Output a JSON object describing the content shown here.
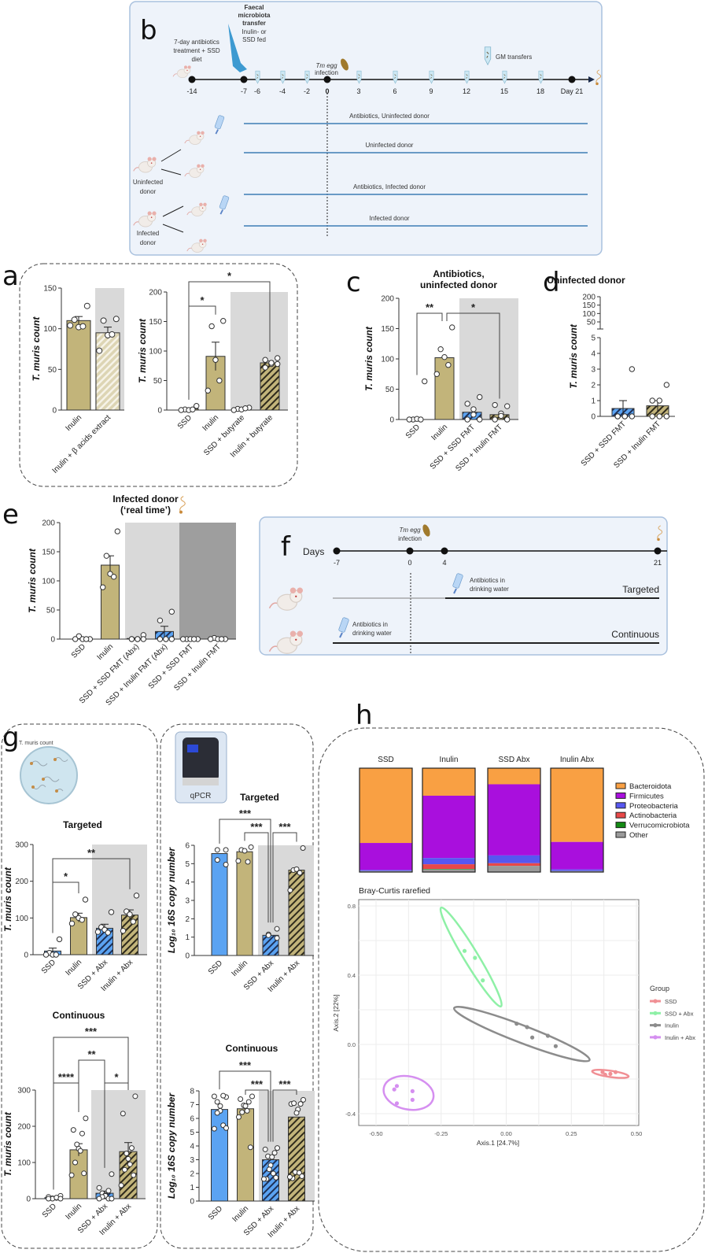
{
  "panel_labels": {
    "a": "a",
    "b": "b",
    "c": "c",
    "d": "d",
    "e": "e",
    "f": "f",
    "g": "g",
    "h": "h"
  },
  "diagram_b": {
    "pretreat": [
      "7-day antibiotics",
      "treatment + SSD",
      "diet"
    ],
    "fmt_title": [
      "Faecal",
      "microbiota",
      "transfer"
    ],
    "fmt_sub": [
      "Inulin- or",
      "SSD fed"
    ],
    "infection": [
      "Tm egg",
      "infection"
    ],
    "gm_transfers": "GM transfers",
    "timeline_ticks": [
      "-14",
      "-7",
      "-6",
      "-4",
      "-2",
      "0",
      "3",
      "6",
      "9",
      "12",
      "15",
      "18",
      "Day 21"
    ],
    "groups": [
      "Antibiotics, Uninfected donor",
      "Uninfected donor",
      "Antibiotics, Infected donor",
      "Infected donor"
    ],
    "donors": [
      [
        "Uninfected",
        "donor"
      ],
      [
        "Infected",
        "donor"
      ]
    ]
  },
  "diagram_f": {
    "days_label": "Days",
    "infection": [
      "Tm egg",
      "infection"
    ],
    "timeline_ticks": [
      "-7",
      "0",
      "4",
      "21"
    ],
    "antibiotics_note": [
      "Antibiotics in",
      "drinking water"
    ],
    "regimens": [
      "Targeted",
      "Continuous"
    ]
  },
  "panel_g": {
    "dish_label": "T. muris count",
    "qpcr_label": "qPCR"
  },
  "colors": {
    "khaki": "#c2b47a",
    "blue": "#5ba3f2",
    "shade_light": "#d9d9d9",
    "shade_dark": "#9e9e9e",
    "bacteroidota": "#f9a043",
    "firmicutes": "#a90fdd",
    "proteobacteria": "#5757f0",
    "actinobacteria": "#e84848",
    "verrucomicrobiota": "#138a13",
    "other": "#9a9a9a",
    "ssd": "#f08f94",
    "ssd_abx": "#8ef0a6",
    "inulin": "#8c8c8c",
    "inulin_abx": "#d58ff0"
  },
  "chart_data": [
    {
      "type": "bar",
      "title": "",
      "ylabel": "T. muris count",
      "ylim": [
        0,
        150
      ],
      "yticks": [
        0,
        50,
        100,
        150
      ],
      "categories": [
        "Inulin",
        "Inulin + β acids extract"
      ],
      "styles": [
        "solid-khaki",
        "hatched-light-khaki"
      ],
      "means": [
        110,
        95
      ],
      "sem": [
        5,
        7
      ],
      "points": [
        [
          128,
          111,
          102,
          103,
          104
        ],
        [
          112,
          110,
          92,
          93,
          73
        ]
      ],
      "brackets": []
    },
    {
      "type": "bar",
      "title": "",
      "ylabel": "T. muris count",
      "ylim": [
        0,
        200
      ],
      "yticks": [
        0,
        50,
        100,
        150,
        200
      ],
      "categories": [
        "SSD",
        "Inulin",
        "SSD + butyrate",
        "Inulin + butyrate"
      ],
      "styles": [
        "solid-khaki",
        "solid-khaki",
        "hatched-khaki",
        "hatched-khaki"
      ],
      "means": [
        2,
        91,
        2,
        80
      ],
      "sem": [
        1,
        24,
        1,
        3
      ],
      "points": [
        [
          7,
          1,
          0,
          1,
          0
        ],
        [
          151,
          142,
          85,
          50,
          33
        ],
        [
          4,
          2,
          1,
          3,
          0
        ],
        [
          88,
          85,
          78,
          80,
          72,
          78
        ]
      ],
      "brackets": [
        {
          "from": 0,
          "to": 1,
          "label": "*"
        },
        {
          "from": 0,
          "to": 3,
          "label": "*"
        }
      ]
    },
    {
      "type": "bar",
      "title": "Antibiotics, uninfected donor",
      "title_lines": [
        "Antibiotics,",
        "uninfected donor"
      ],
      "ylabel": "T. muris count",
      "ylim": [
        0,
        200
      ],
      "yticks": [
        0,
        50,
        100,
        150,
        200
      ],
      "categories": [
        "SSD",
        "Inulin",
        "SSD + SSD FMT",
        "SSD + Inulin FMT"
      ],
      "styles": [
        "solid-khaki",
        "solid-khaki",
        "hatched-blue",
        "hatched-khaki"
      ],
      "means": [
        0,
        102,
        12,
        8
      ],
      "sem": [
        0,
        0,
        0,
        0
      ],
      "points": [
        [
          63,
          0,
          1,
          0,
          0
        ],
        [
          152,
          116,
          103,
          90,
          75
        ],
        [
          37,
          26,
          17,
          8,
          0,
          0
        ],
        [
          22,
          24,
          10,
          6,
          0,
          0
        ]
      ],
      "brackets": [
        {
          "from": 0,
          "to": 1,
          "label": "**"
        },
        {
          "from": 1,
          "to": 3,
          "label": "*"
        }
      ]
    },
    {
      "type": "bar",
      "title": "Uninfected donor",
      "ylabel": "T. muris count",
      "ylim": [
        0,
        200
      ],
      "yticks": [
        0,
        1,
        2,
        3,
        4,
        5
      ],
      "yticks_upper": [
        50,
        100,
        150,
        200
      ],
      "axis_break": [
        5,
        50
      ],
      "categories": [
        "SSD + SSD FMT",
        "SSD + Inulin FMT"
      ],
      "styles": [
        "hatched-blue",
        "hatched-khaki"
      ],
      "means": [
        0.5,
        0.67
      ],
      "sem": [
        0.5,
        0.33
      ],
      "points": [
        [
          3,
          0,
          0,
          0,
          0,
          0
        ],
        [
          2,
          1,
          1,
          0,
          0,
          0
        ]
      ],
      "brackets": []
    },
    {
      "type": "bar",
      "title": "Infected donor (‘real time’)",
      "title_lines": [
        "Infected donor",
        "(‘real time’)"
      ],
      "ylabel": "T. muris count",
      "ylim": [
        0,
        200
      ],
      "yticks": [
        0,
        50,
        100,
        150,
        200
      ],
      "categories": [
        "SSD",
        "Inulin",
        "SSD + SSD FMT (Abx)",
        "SSD + Inulin FMT (Abx)",
        "SSD + SSD FMT",
        "SSD + Inulin FMT"
      ],
      "styles": [
        "solid-khaki",
        "solid-khaki",
        "hatched-blue",
        "hatched-blue",
        "hatched-blue",
        "hatched-khaki"
      ],
      "means": [
        1,
        127,
        1,
        13,
        0,
        0
      ],
      "sem": [
        1,
        16,
        1,
        9,
        0,
        0
      ],
      "points": [
        [
          0,
          5,
          0,
          0,
          0
        ],
        [
          185,
          143,
          112,
          107,
          89
        ],
        [
          7,
          0,
          0,
          0,
          0,
          0
        ],
        [
          47,
          32,
          0,
          0,
          0,
          0
        ],
        [
          0,
          0,
          0,
          0,
          0
        ],
        [
          0,
          2,
          0,
          0,
          0
        ]
      ],
      "brackets": []
    },
    {
      "type": "bar",
      "title": "Targeted",
      "ylabel": "T. muris count",
      "ylim": [
        0,
        300
      ],
      "yticks": [
        0,
        100,
        200,
        300
      ],
      "categories": [
        "SSD",
        "Inulin",
        "SSD + Abx",
        "Inulin + Abx"
      ],
      "styles": [
        "solid-blue",
        "solid-khaki",
        "hatched-blue",
        "hatched-khaki"
      ],
      "means": [
        10,
        101,
        72,
        108
      ],
      "sem": [
        8,
        12,
        11,
        14
      ],
      "points": [
        [
          42,
          5,
          0,
          0,
          0
        ],
        [
          150,
          110,
          100,
          95,
          85
        ],
        [
          116,
          75,
          68,
          60,
          62
        ],
        [
          161,
          118,
          110,
          90,
          65
        ]
      ],
      "brackets": [
        {
          "from": 0,
          "to": 1,
          "label": "*"
        },
        {
          "from": 0,
          "to": 3,
          "label": "**"
        }
      ]
    },
    {
      "type": "bar",
      "title": "Targeted",
      "ylabel": "Log₁₀ 16S copy number",
      "ylim": [
        0,
        6
      ],
      "yticks": [
        0,
        1,
        2,
        3,
        4,
        5,
        6
      ],
      "categories": [
        "SSD",
        "Inulin",
        "SSD + Abx",
        "Inulin + Abx"
      ],
      "styles": [
        "solid-blue",
        "solid-khaki",
        "hatched-blue",
        "hatched-khaki"
      ],
      "means": [
        5.55,
        5.65,
        1.1,
        4.65
      ],
      "sem": [
        0,
        0,
        0,
        0
      ],
      "points": [
        [
          5.75,
          5.75,
          5.2,
          4.95
        ],
        [
          5.9,
          5.75,
          5.7,
          5.1,
          5.15
        ],
        [
          1.45,
          1.15,
          1.1,
          0.95
        ],
        [
          5.85,
          4.65,
          4.7,
          4.5,
          3.55
        ]
      ],
      "brackets": [
        {
          "from": 0,
          "to": 2,
          "label": "***"
        },
        {
          "from": 1,
          "to": 2,
          "label": "***"
        },
        {
          "from": 2,
          "to": 3,
          "label": "***"
        }
      ]
    },
    {
      "type": "bar",
      "title": "Continuous",
      "ylabel": "T. muris count",
      "ylim": [
        0,
        300
      ],
      "yticks": [
        0,
        100,
        200,
        300
      ],
      "categories": [
        "SSD",
        "Inulin",
        "SSD + Abx",
        "Inulin + Abx"
      ],
      "styles": [
        "solid-blue",
        "solid-khaki",
        "hatched-blue",
        "hatched-khaki"
      ],
      "means": [
        3,
        135,
        15,
        130
      ],
      "sem": [
        1,
        17,
        6,
        25
      ],
      "points": [
        [
          8,
          5,
          2,
          1,
          0,
          3,
          0,
          0
        ],
        [
          222,
          190,
          180,
          150,
          138,
          132,
          100,
          70,
          65
        ],
        [
          68,
          30,
          22,
          15,
          10,
          8,
          5,
          0,
          0,
          0
        ],
        [
          283,
          235,
          140,
          125,
          110,
          95,
          80,
          65,
          37
        ]
      ],
      "brackets": [
        {
          "from": 0,
          "to": 1,
          "label": "****"
        },
        {
          "from": 1,
          "to": 2,
          "label": "**"
        },
        {
          "from": 0,
          "to": 3,
          "label": "***"
        },
        {
          "from": 2,
          "to": 3,
          "label": "*"
        }
      ]
    },
    {
      "type": "bar",
      "title": "Continuous",
      "ylabel": "Log₁₀ 16S copy number",
      "ylim": [
        0,
        8
      ],
      "yticks": [
        0,
        1,
        2,
        3,
        4,
        5,
        6,
        7,
        8
      ],
      "categories": [
        "SSD",
        "Inulin",
        "SSD + Abx",
        "Inulin + Abx"
      ],
      "styles": [
        "solid-blue",
        "solid-khaki",
        "hatched-blue",
        "hatched-khaki"
      ],
      "means": [
        6.65,
        6.7,
        3.0,
        6.1
      ],
      "sem": [
        0,
        0,
        0,
        0
      ],
      "points": [
        [
          7.55,
          7.6,
          7.65,
          7.2,
          6.9,
          6.55,
          6.4,
          5.5,
          5.25,
          5.3
        ],
        [
          7.6,
          7.4,
          7.2,
          6.95,
          6.9,
          6.55,
          6.45,
          3.9,
          6.1
        ],
        [
          3.85,
          3.75,
          3.5,
          3.25,
          3.2,
          2.6,
          2.3,
          2.0,
          1.6,
          1.7,
          1.6
        ],
        [
          7.35,
          7.05,
          7.05,
          7.1,
          6.65,
          6.4,
          2.1,
          2.05,
          1.65,
          1.8,
          1.75
        ]
      ],
      "brackets": [
        {
          "from": 0,
          "to": 2,
          "label": "***"
        },
        {
          "from": 1,
          "to": 2,
          "label": "***"
        },
        {
          "from": 2,
          "to": 3,
          "label": "***"
        }
      ]
    },
    {
      "type": "bar",
      "subtype": "stacked-100",
      "categories": [
        "SSD",
        "Inulin",
        "SSD Abx",
        "Inulin Abx"
      ],
      "series": [
        {
          "name": "Bacteroidota",
          "values": [
            0.72,
            0.265,
            0.155,
            0.71
          ]
        },
        {
          "name": "Firmicutes",
          "values": [
            0.26,
            0.6,
            0.685,
            0.265
          ]
        },
        {
          "name": "Proteobacteria",
          "values": [
            0.01,
            0.06,
            0.075,
            0.015
          ]
        },
        {
          "name": "Actinobacteria",
          "values": [
            0.0,
            0.045,
            0.025,
            0.0
          ]
        },
        {
          "name": "Verrucomicrobiota",
          "values": [
            0.0,
            0.005,
            0.0,
            0.0
          ]
        },
        {
          "name": "Other",
          "values": [
            0.01,
            0.025,
            0.06,
            0.01
          ]
        }
      ],
      "legend": "right"
    },
    {
      "type": "scatter",
      "title": "Bray-Curtis rarefied",
      "xlabel": "Axis.1   [24.7%]",
      "ylabel": "Axis.2   [22%]",
      "xlim": [
        -0.55,
        0.52
      ],
      "ylim": [
        -0.47,
        0.83
      ],
      "xticks": [
        "-0.50",
        "-0.25",
        "0.00",
        "0.25",
        "0.50"
      ],
      "yticks": [
        "-0.4",
        "0.0",
        "0.4",
        "0.8"
      ],
      "grid": true,
      "legend_title": "Group",
      "legend": "right",
      "series": [
        {
          "name": "SSD",
          "points": [
            [
              0.37,
              -0.16
            ],
            [
              0.4,
              -0.17
            ],
            [
              0.42,
              -0.16
            ],
            [
              0.38,
              -0.175
            ]
          ],
          "ellipse_major_axis": [
            [
              0.33,
              -0.155
            ],
            [
              0.47,
              -0.185
            ]
          ]
        },
        {
          "name": "SSD + Abx",
          "points": [
            [
              -0.16,
              0.54
            ],
            [
              -0.12,
              0.5
            ],
            [
              -0.09,
              0.37
            ]
          ],
          "ellipse_major_axis": [
            [
              -0.25,
              0.79
            ],
            [
              -0.02,
              0.22
            ]
          ]
        },
        {
          "name": "Inulin",
          "points": [
            [
              0.04,
              0.12
            ],
            [
              0.08,
              0.1
            ],
            [
              0.1,
              0.04
            ],
            [
              0.16,
              0.05
            ],
            [
              0.19,
              -0.01
            ]
          ],
          "ellipse_major_axis": [
            [
              -0.2,
              0.21
            ],
            [
              0.32,
              -0.09
            ]
          ]
        },
        {
          "name": "Inulin + Abx",
          "points": [
            [
              -0.43,
              -0.26
            ],
            [
              -0.42,
              -0.24
            ],
            [
              -0.36,
              -0.27
            ],
            [
              -0.36,
              -0.32
            ],
            [
              -0.42,
              -0.34
            ]
          ],
          "ellipse_major_axis": [
            [
              -0.47,
              -0.25
            ],
            [
              -0.28,
              -0.31
            ]
          ]
        }
      ]
    }
  ]
}
